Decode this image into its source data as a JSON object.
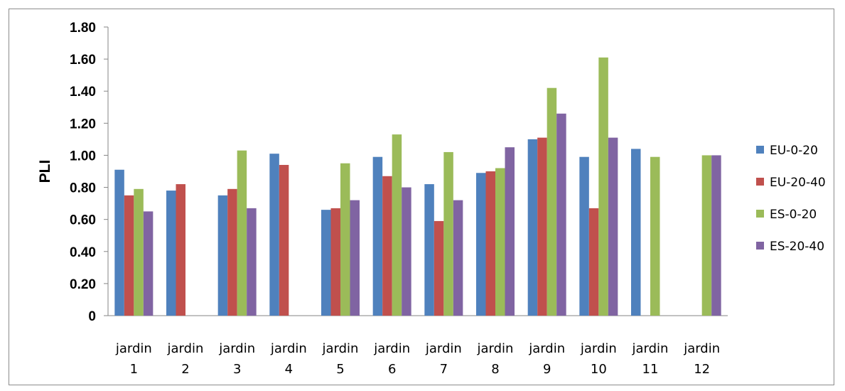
{
  "chart_data": {
    "type": "bar",
    "title": "",
    "xlabel": "",
    "ylabel": "PLI",
    "ylim": [
      0,
      1.8
    ],
    "yticks": [
      "0",
      "0.20",
      "0.40",
      "0.60",
      "0.80",
      "1.00",
      "1.20",
      "1.40",
      "1.60",
      "1.80"
    ],
    "ytick_values": [
      0,
      0.2,
      0.4,
      0.6,
      0.8,
      1.0,
      1.2,
      1.4,
      1.6,
      1.8
    ],
    "categories": [
      [
        "jardin",
        "1"
      ],
      [
        "jardin",
        "2"
      ],
      [
        "jardin",
        "3"
      ],
      [
        "jardin",
        "4"
      ],
      [
        "jardin",
        "5"
      ],
      [
        "jardin",
        "6"
      ],
      [
        "jardin",
        "7"
      ],
      [
        "jardin",
        "8"
      ],
      [
        "jardin",
        "9"
      ],
      [
        "jardin",
        "10"
      ],
      [
        "jardin",
        "11"
      ],
      [
        "jardin",
        "12"
      ]
    ],
    "grid": false,
    "legend_position": "right",
    "series": [
      {
        "name": "EU-0-20",
        "color": "#4f81bd",
        "values": [
          0.91,
          0.78,
          0.75,
          1.01,
          0.66,
          0.99,
          0.82,
          0.89,
          1.1,
          0.99,
          1.04,
          null
        ]
      },
      {
        "name": "EU-20-40",
        "color": "#c0504d",
        "values": [
          0.75,
          0.82,
          0.79,
          0.94,
          0.67,
          0.87,
          0.59,
          0.9,
          1.11,
          0.67,
          null,
          null
        ]
      },
      {
        "name": "ES-0-20",
        "color": "#9bbb59",
        "values": [
          0.79,
          null,
          1.03,
          null,
          0.95,
          1.13,
          1.02,
          0.92,
          1.42,
          1.61,
          0.99,
          1.0
        ]
      },
      {
        "name": "ES-20-40",
        "color": "#8064a2",
        "values": [
          0.65,
          null,
          0.67,
          null,
          0.72,
          0.8,
          0.72,
          1.05,
          1.26,
          1.11,
          null,
          1.0
        ]
      }
    ]
  }
}
